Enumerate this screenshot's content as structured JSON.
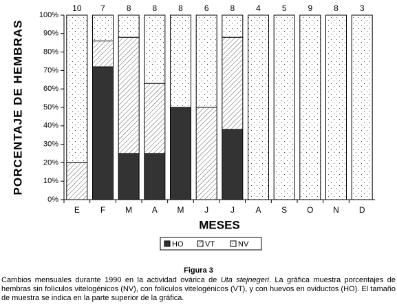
{
  "chart_data": {
    "type": "stacked_bar",
    "y_label": "PORCENTAJE DE HEMBRAS",
    "x_label": "MESES",
    "categories": [
      "E",
      "F",
      "M",
      "A",
      "M",
      "J",
      "J",
      "A",
      "S",
      "O",
      "N",
      "D"
    ],
    "sample_sizes": [
      10,
      7,
      8,
      8,
      8,
      6,
      8,
      4,
      5,
      9,
      8,
      3
    ],
    "series": [
      {
        "name": "HO",
        "color": "#333333",
        "pattern": "solid",
        "values": [
          0,
          72,
          25,
          25,
          50,
          0,
          38,
          0,
          0,
          0,
          0,
          0
        ]
      },
      {
        "name": "VT",
        "color": "#000000",
        "pattern": "hatch",
        "values": [
          20,
          14,
          63,
          38,
          0,
          50,
          50,
          0,
          0,
          0,
          0,
          0
        ]
      },
      {
        "name": "NV",
        "color": "#000000",
        "pattern": "dots",
        "values": [
          80,
          14,
          12,
          37,
          50,
          50,
          12,
          100,
          100,
          100,
          100,
          100
        ]
      }
    ],
    "ylim": [
      0,
      100
    ],
    "yticks": [
      {
        "value": 0,
        "label": "0%"
      },
      {
        "value": 10,
        "label": "10%"
      },
      {
        "value": 20,
        "label": "20%"
      },
      {
        "value": 30,
        "label": "30%"
      },
      {
        "value": 40,
        "label": "40%"
      },
      {
        "value": 50,
        "label": "50%"
      },
      {
        "value": 60,
        "label": "60%"
      },
      {
        "value": 70,
        "label": "70%"
      },
      {
        "value": 80,
        "label": "80%"
      },
      {
        "value": 90,
        "label": "90%"
      },
      {
        "value": 100,
        "label": "100%"
      }
    ],
    "grid": false
  },
  "figure_caption": {
    "label": "Figura 3",
    "text_before": "Cambios mensuales durante 1990 en la actividad ovárica de ",
    "species": "Uta stejnegeri",
    "text_after": ". La gráfica muestra porcentajes de hembras sin folículos vitelogénicos (NV), con folículos vitelogénicos (VT), y con huevos en oviductos (HO). El tamaño de muestra se indica en la parte superior de la gráfica."
  }
}
